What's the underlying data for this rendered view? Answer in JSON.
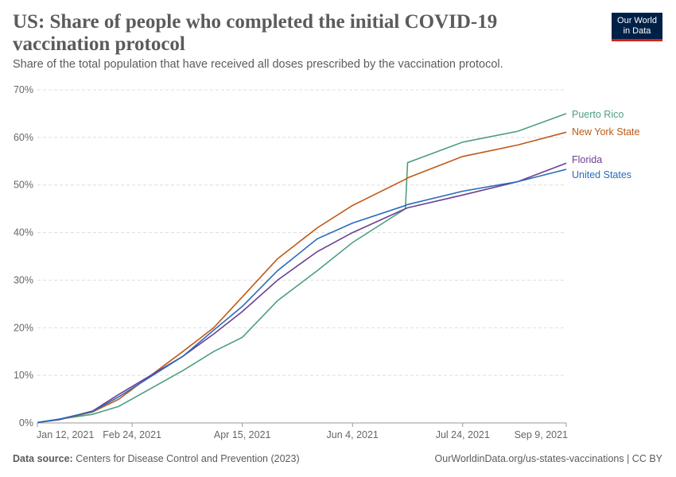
{
  "header": {
    "title": "US: Share of people who completed the initial COVID-19 vaccination protocol",
    "subtitle": "Share of the total population that have received all doses prescribed by the vaccination protocol.",
    "logo": "Our World in Data"
  },
  "footer": {
    "source_label": "Data source:",
    "source": "Centers for Disease Control and Prevention (2023)",
    "url": "OurWorldinData.org/us-states-vaccinations | CC BY"
  },
  "chart_data": {
    "type": "line",
    "title": "US: Share of people who completed the initial COVID-19 vaccination protocol",
    "xlim": [
      "2021-01-12",
      "2021-09-09"
    ],
    "ylim": [
      0,
      70
    ],
    "y_ticks": [
      "0%",
      "10%",
      "20%",
      "30%",
      "40%",
      "50%",
      "60%",
      "70%"
    ],
    "x_ticks": [
      {
        "date": "2021-01-12",
        "label": "Jan 12, 2021"
      },
      {
        "date": "2021-02-24",
        "label": "Feb 24, 2021"
      },
      {
        "date": "2021-04-15",
        "label": "Apr 15, 2021"
      },
      {
        "date": "2021-06-04",
        "label": "Jun 4, 2021"
      },
      {
        "date": "2021-07-24",
        "label": "Jul 24, 2021"
      },
      {
        "date": "2021-09-09",
        "label": "Sep 9, 2021"
      }
    ],
    "grid": "horizontal dashed",
    "legend": "right, inline labels",
    "x": [
      "2021-01-12",
      "2021-01-22",
      "2021-02-06",
      "2021-02-18",
      "2021-03-19",
      "2021-04-02",
      "2021-04-15",
      "2021-05-01",
      "2021-05-19",
      "2021-06-04",
      "2021-06-28",
      "2021-06-29",
      "2021-07-24",
      "2021-08-18",
      "2021-09-09"
    ],
    "series": [
      {
        "name": "Puerto Rico",
        "color": "#4e9e80",
        "values": [
          0.1,
          0.8,
          1.8,
          3.5,
          11,
          15,
          18,
          25.7,
          32,
          37.9,
          45,
          54.7,
          59,
          61.3,
          65
        ]
      },
      {
        "name": "New York State",
        "color": "#c05917",
        "values": [
          0.1,
          0.7,
          2.3,
          5,
          15,
          20,
          26.5,
          34.5,
          41,
          45.7,
          51.2,
          51.5,
          56,
          58.4,
          61.1
        ]
      },
      {
        "name": "Florida",
        "color": "#6d3e91",
        "values": [
          0.1,
          0.7,
          2.5,
          6,
          14,
          18.7,
          23.4,
          30,
          36,
          40,
          45,
          45.2,
          47.9,
          50.7,
          54.6
        ]
      },
      {
        "name": "United States",
        "color": "#286bbb",
        "values": [
          0.1,
          0.8,
          2.4,
          5.5,
          14,
          19.5,
          24.5,
          32,
          38.7,
          42,
          45.7,
          45.9,
          48.7,
          50.7,
          53.3
        ]
      }
    ]
  }
}
